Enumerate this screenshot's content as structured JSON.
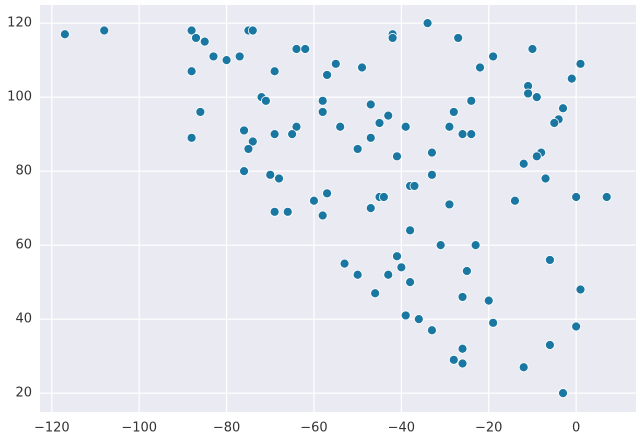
{
  "chart_data": {
    "type": "scatter",
    "x": [
      -117,
      -108,
      -88,
      -87,
      -85,
      -83,
      -80,
      -77,
      -75,
      -74,
      -88,
      -86,
      -88,
      -64,
      -62,
      -69,
      -72,
      -71,
      -76,
      -69,
      -74,
      -75,
      -64,
      -65,
      -76,
      -70,
      -68,
      -69,
      -66,
      -55,
      -57,
      -49,
      -58,
      -58,
      -54,
      -50,
      -47,
      -43,
      -45,
      -47,
      -42,
      -42,
      -34,
      -27,
      -60,
      -57,
      -58,
      -47,
      -45,
      -44,
      -41,
      -39,
      -38,
      -37,
      -33,
      -33,
      -29,
      -28,
      -26,
      -24,
      -24,
      -22,
      -19,
      -38,
      -29,
      -31,
      -23,
      -41,
      -53,
      -50,
      -43,
      -40,
      -46,
      -38,
      -25,
      -26,
      -20,
      -19,
      -39,
      -36,
      -33,
      -26,
      -28,
      -26,
      -10,
      -11,
      -11,
      -9,
      -1,
      1,
      -3,
      -4,
      -5,
      -8,
      -9,
      -12,
      -7,
      -14,
      0,
      7,
      -6,
      1,
      0,
      -6,
      -12,
      -3
    ],
    "series": [
      {
        "color": "#1a77a1",
        "values": [
          117,
          118,
          118,
          116,
          115,
          111,
          110,
          111,
          118,
          118,
          107,
          96,
          89,
          113,
          113,
          107,
          100,
          99,
          91,
          90,
          88,
          86,
          92,
          90,
          80,
          79,
          78,
          69,
          69,
          109,
          106,
          108,
          99,
          96,
          92,
          86,
          98,
          95,
          93,
          89,
          117,
          116,
          120,
          116,
          72,
          74,
          68,
          70,
          73,
          73,
          84,
          92,
          76,
          76,
          85,
          79,
          92,
          96,
          90,
          90,
          99,
          108,
          111,
          64,
          71,
          60,
          60,
          57,
          55,
          52,
          52,
          54,
          47,
          50,
          53,
          46,
          45,
          39,
          41,
          40,
          37,
          32,
          29,
          28,
          113,
          103,
          101,
          100,
          105,
          109,
          97,
          94,
          93,
          85,
          84,
          82,
          78,
          72,
          73,
          73,
          56,
          48,
          38,
          33,
          27,
          20
        ]
      }
    ],
    "xlim": [
      -122.7,
      13.7
    ],
    "ylim": [
      14.9,
      124.9
    ],
    "xticks": [
      {
        "value": -120,
        "label": "−120"
      },
      {
        "value": -100,
        "label": "−100"
      },
      {
        "value": -80,
        "label": "−80"
      },
      {
        "value": -60,
        "label": "−60"
      },
      {
        "value": -40,
        "label": "−40"
      },
      {
        "value": -20,
        "label": "−20"
      },
      0
    ],
    "yticks": [
      20,
      40,
      60,
      80,
      100,
      120
    ],
    "grid": true
  }
}
